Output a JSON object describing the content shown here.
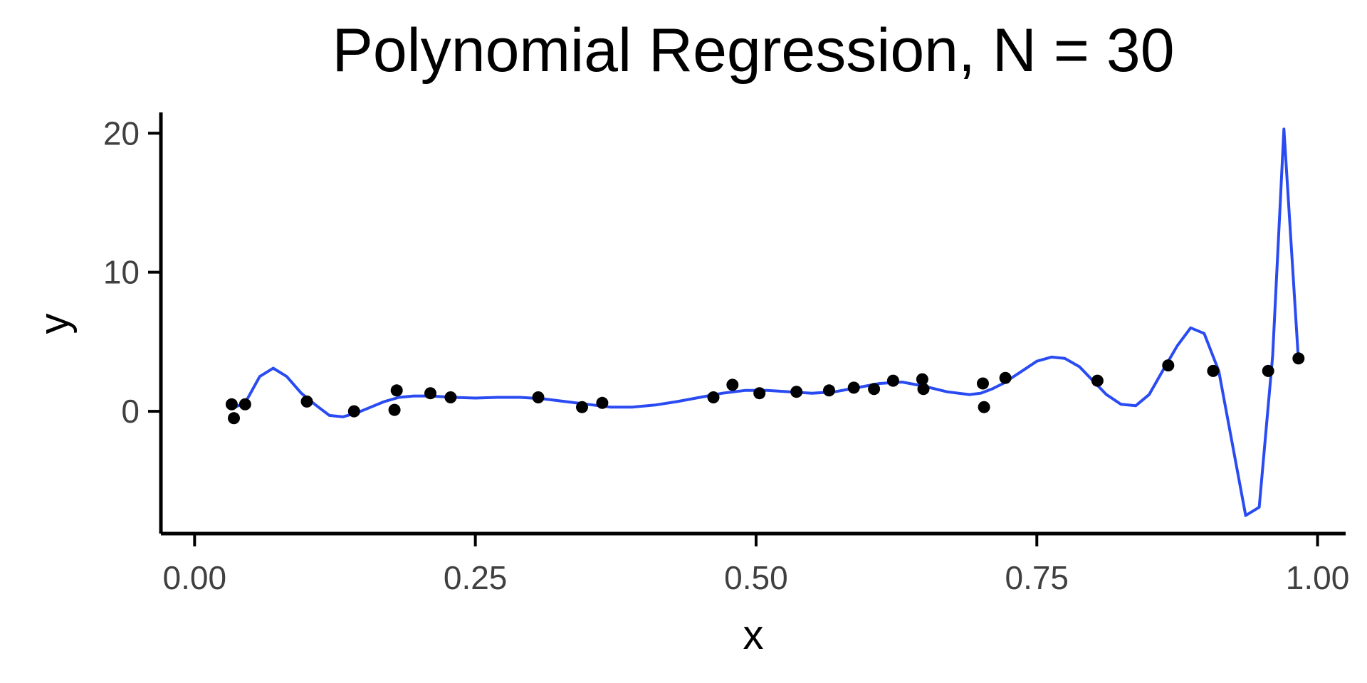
{
  "chart_data": {
    "type": "scatter",
    "title": "Polynomial Regression, N = 30",
    "xlabel": "x",
    "ylabel": "y",
    "xlim": [
      -0.03,
      1.025
    ],
    "ylim": [
      -8.8,
      21.5
    ],
    "x_ticks": [
      0.0,
      0.25,
      0.5,
      0.75,
      1.0
    ],
    "x_tick_labels": [
      "0.00",
      "0.25",
      "0.50",
      "0.75",
      "1.00"
    ],
    "y_ticks": [
      0,
      10,
      20
    ],
    "y_tick_labels": [
      "0",
      "10",
      "20"
    ],
    "grid": false,
    "legend": "none",
    "colors": {
      "points": "#000000",
      "fit_line": "#2a4bf2",
      "axis": "#000000",
      "tick_label": "#404040"
    },
    "series": [
      {
        "kind": "points",
        "x": [
          0.033,
          0.035,
          0.045,
          0.1,
          0.142,
          0.178,
          0.18,
          0.21,
          0.228,
          0.306,
          0.345,
          0.363,
          0.462,
          0.479,
          0.503,
          0.536,
          0.565,
          0.587,
          0.605,
          0.622,
          0.648,
          0.649,
          0.702,
          0.703,
          0.722,
          0.804,
          0.867,
          0.907,
          0.956,
          0.983
        ],
        "y": [
          0.5,
          -0.5,
          0.5,
          0.7,
          0.0,
          0.1,
          1.5,
          1.3,
          1.0,
          1.0,
          0.3,
          0.6,
          1.0,
          1.9,
          1.3,
          1.4,
          1.5,
          1.7,
          1.6,
          2.2,
          2.3,
          1.6,
          2.0,
          0.3,
          2.4,
          2.2,
          3.3,
          2.9,
          2.9,
          3.8
        ]
      },
      {
        "kind": "fit_line",
        "x": [
          0.033,
          0.045,
          0.058,
          0.07,
          0.082,
          0.095,
          0.107,
          0.12,
          0.132,
          0.145,
          0.157,
          0.169,
          0.182,
          0.195,
          0.21,
          0.23,
          0.25,
          0.27,
          0.29,
          0.31,
          0.33,
          0.35,
          0.37,
          0.39,
          0.41,
          0.43,
          0.45,
          0.47,
          0.49,
          0.51,
          0.53,
          0.55,
          0.57,
          0.59,
          0.61,
          0.63,
          0.65,
          0.67,
          0.69,
          0.7,
          0.71,
          0.72,
          0.735,
          0.75,
          0.763,
          0.775,
          0.788,
          0.8,
          0.812,
          0.825,
          0.838,
          0.85,
          0.862,
          0.875,
          0.887,
          0.899,
          0.912,
          0.924,
          0.936,
          0.948,
          0.96,
          0.97,
          0.983
        ],
        "y": [
          0.2,
          0.6,
          2.5,
          3.1,
          2.5,
          1.3,
          0.5,
          -0.3,
          -0.4,
          -0.1,
          0.3,
          0.7,
          1.0,
          1.1,
          1.1,
          1.0,
          0.95,
          1.0,
          1.0,
          0.9,
          0.7,
          0.5,
          0.3,
          0.3,
          0.45,
          0.7,
          1.0,
          1.3,
          1.5,
          1.5,
          1.4,
          1.3,
          1.4,
          1.7,
          2.0,
          2.1,
          1.8,
          1.4,
          1.2,
          1.3,
          1.6,
          2.0,
          2.8,
          3.6,
          3.9,
          3.8,
          3.2,
          2.2,
          1.2,
          0.5,
          0.4,
          1.2,
          2.9,
          4.7,
          6.0,
          5.6,
          2.9,
          -2.3,
          -7.5,
          -6.9,
          4.0,
          20.3,
          3.6
        ]
      }
    ]
  }
}
